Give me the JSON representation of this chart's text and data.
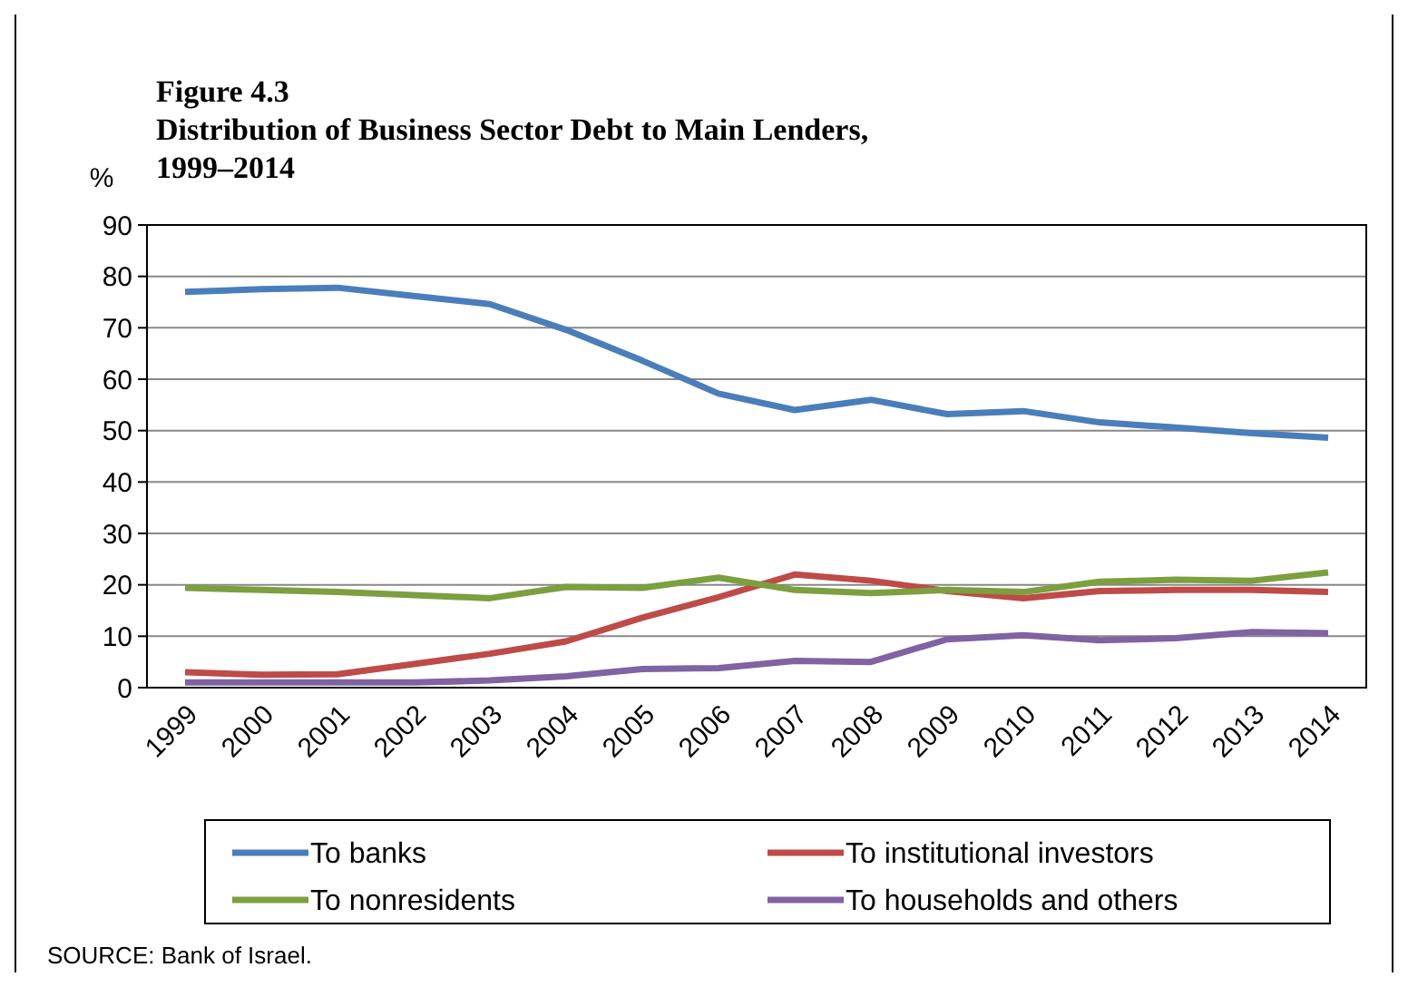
{
  "chart_data": {
    "type": "line",
    "title": "Figure 4.3\nDistribution of Business Sector Debt to Main Lenders,\n1999–2014",
    "ylabel": "%",
    "categories": [
      "1999",
      "2000",
      "2001",
      "2002",
      "2003",
      "2004",
      "2005",
      "2006",
      "2007",
      "2008",
      "2009",
      "2010",
      "2011",
      "2012",
      "2013",
      "2014"
    ],
    "series": [
      {
        "name": "To banks",
        "color": "#4a7ebb",
        "values": [
          77,
          77.5,
          77.8,
          76.2,
          74.6,
          69.6,
          63.6,
          57.2,
          54,
          56,
          53.2,
          53.8,
          51.6,
          50.6,
          49.5,
          48.6
        ]
      },
      {
        "name": "To institutional investors",
        "color": "#be4b48",
        "values": [
          3,
          2.5,
          2.6,
          4.6,
          6.6,
          9,
          13.6,
          17.6,
          22,
          20.8,
          18.8,
          17.4,
          18.8,
          19,
          19,
          18.6
        ]
      },
      {
        "name": "To nonresidents",
        "color": "#7c9f3f",
        "values": [
          19.4,
          19,
          18.6,
          18,
          17.4,
          19.6,
          19.4,
          21.4,
          19,
          18.4,
          19,
          18.6,
          20.6,
          21,
          20.8,
          22.4
        ]
      },
      {
        "name": "To households and others",
        "color": "#7f63a2",
        "values": [
          1,
          1,
          1,
          1,
          1.4,
          2.2,
          3.6,
          3.8,
          5.2,
          5,
          9.4,
          10.2,
          9.2,
          9.6,
          10.8,
          10.6
        ]
      }
    ],
    "ylim": [
      0,
      90
    ],
    "yticks": [
      0,
      10,
      20,
      30,
      40,
      50,
      60,
      70,
      80,
      90
    ],
    "grid": "y",
    "legend": "bottom",
    "marker": "none",
    "line_style": "solid",
    "annotations": [
      "SOURCE: Bank of Israel."
    ]
  }
}
